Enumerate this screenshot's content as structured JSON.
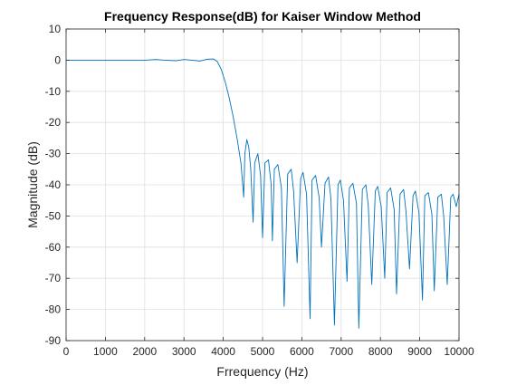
{
  "chart_data": {
    "type": "line",
    "title": "Frequency Response(dB) for Kaiser Window Method",
    "xlabel": "Frrequency (Hz)",
    "ylabel": "Magnitude (dB)",
    "xlim": [
      0,
      10000
    ],
    "ylim": [
      -90,
      10
    ],
    "grid": true,
    "legend": "none",
    "line_color": "#0072BD",
    "x_ticks": [
      {
        "value": 0,
        "label": "0"
      },
      {
        "value": 1000,
        "label": "1000"
      },
      {
        "value": 2000,
        "label": "2000"
      },
      {
        "value": 3000,
        "label": "3000"
      },
      {
        "value": 4000,
        "label": "4000"
      },
      {
        "value": 5000,
        "label": "5000"
      },
      {
        "value": 6000,
        "label": "6000"
      },
      {
        "value": 7000,
        "label": "7000"
      },
      {
        "value": 8000,
        "label": "8000"
      },
      {
        "value": 9000,
        "label": "9000"
      },
      {
        "value": 10000,
        "label": "10000"
      }
    ],
    "y_ticks": [
      {
        "value": 10,
        "label": "10"
      },
      {
        "value": 0,
        "label": "0"
      },
      {
        "value": -10,
        "label": "-10"
      },
      {
        "value": -20,
        "label": "-20"
      },
      {
        "value": -30,
        "label": "-30"
      },
      {
        "value": -40,
        "label": "-40"
      },
      {
        "value": -50,
        "label": "-50"
      },
      {
        "value": -60,
        "label": "-60"
      },
      {
        "value": -70,
        "label": "-70"
      },
      {
        "value": -80,
        "label": "-80"
      },
      {
        "value": -90,
        "label": "-90"
      }
    ],
    "series": [
      {
        "x": [
          0,
          500,
          1000,
          1500,
          2000,
          2300,
          2500,
          2800,
          3000,
          3200,
          3400,
          3600,
          3750,
          3850,
          3950,
          4050,
          4150,
          4250,
          4350,
          4450,
          4520,
          4550,
          4600,
          4650,
          4700,
          4760,
          4800,
          4880,
          4950,
          5000,
          5060,
          5150,
          5220,
          5250,
          5300,
          5390,
          5480,
          5550,
          5640,
          5730,
          5790,
          5880,
          5970,
          6030,
          6120,
          6210,
          6260,
          6350,
          6440,
          6500,
          6590,
          6680,
          6740,
          6830,
          6920,
          6980,
          7060,
          7150,
          7210,
          7300,
          7390,
          7450,
          7540,
          7630,
          7690,
          7780,
          7870,
          7930,
          8020,
          8110,
          8170,
          8260,
          8350,
          8410,
          8500,
          8590,
          8650,
          8740,
          8830,
          8890,
          8980,
          9070,
          9130,
          9220,
          9310,
          9370,
          9460,
          9550,
          9610,
          9700,
          9790,
          9850,
          9930,
          10000
        ],
        "y": [
          0,
          0,
          0,
          0,
          0,
          0.2,
          0,
          -0.2,
          0.2,
          0,
          -0.3,
          0.3,
          0.4,
          -0.5,
          -3,
          -7,
          -12,
          -18,
          -25,
          -33,
          -44,
          -30,
          -25.5,
          -28,
          -35,
          -52,
          -33,
          -30,
          -37,
          -57,
          -33,
          -32,
          -40,
          -58,
          -35,
          -33.5,
          -41,
          -79,
          -36.5,
          -35,
          -42,
          -65,
          -38,
          -36,
          -43,
          -83,
          -38.5,
          -37,
          -44,
          -60,
          -39.5,
          -37.5,
          -44.5,
          -85,
          -40,
          -38.5,
          -45,
          -71,
          -41,
          -39.5,
          -46,
          -86,
          -41.5,
          -40,
          -46.5,
          -72,
          -42,
          -40.5,
          -47,
          -70,
          -42.5,
          -41,
          -48,
          -75,
          -43,
          -41.5,
          -48.5,
          -67,
          -43.5,
          -42,
          -49,
          -77,
          -43.5,
          -42.5,
          -49.5,
          -74,
          -44,
          -43,
          -50,
          -72,
          -44,
          -43,
          -47,
          -43
        ]
      }
    ]
  }
}
